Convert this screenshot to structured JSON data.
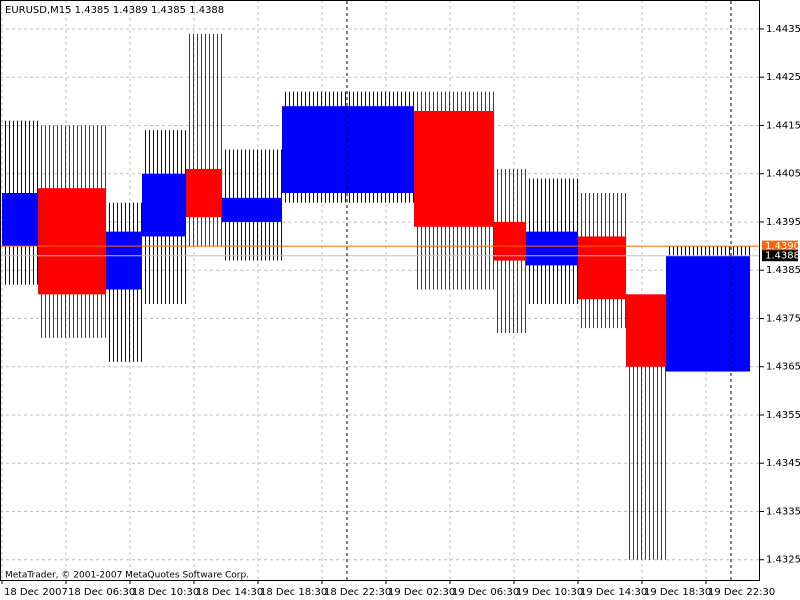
{
  "chart_data": {
    "type": "candlestick",
    "title": "EURUSD,M15  1.4385 1.4389 1.4385 1.4388",
    "footer": "MetaTrader, © 2001-2007 MetaQuotes Software Corp.",
    "up_color": "#0000ff",
    "down_color": "#ff0000",
    "up_wick_color": "#000080",
    "down_wick_color": "#cc0000",
    "grid": true,
    "xlim": [
      -0.125,
      47.375
    ],
    "xticks": [
      {
        "value": 0,
        "label": "18 Dec 2007"
      },
      {
        "value": 4,
        "label": "18 Dec 06:30"
      },
      {
        "value": 8,
        "label": "18 Dec 10:30"
      },
      {
        "value": 12,
        "label": "18 Dec 14:30"
      },
      {
        "value": 16,
        "label": "18 Dec 18:30"
      },
      {
        "value": 20,
        "label": "18 Dec 22:30"
      },
      {
        "value": 24,
        "label": "19 Dec 02:30"
      },
      {
        "value": 28,
        "label": "19 Dec 06:30"
      },
      {
        "value": 32,
        "label": "19 Dec 10:30"
      },
      {
        "value": 36,
        "label": "19 Dec 14:30"
      },
      {
        "value": 40,
        "label": "19 Dec 18:30"
      },
      {
        "value": 44,
        "label": "19 Dec 22:30"
      }
    ],
    "ylim": [
      1.43208,
      1.4441
    ],
    "yticks": [
      1.4435,
      1.4425,
      1.4415,
      1.4405,
      1.4395,
      1.4385,
      1.4375,
      1.4365,
      1.4355,
      1.4345,
      1.4335,
      1.4325
    ],
    "price_lines": [
      {
        "value": 1.439,
        "label": "1.4390",
        "color": "#ff6600"
      },
      {
        "value": 1.4388,
        "label": "1.4388",
        "color": "#000000"
      }
    ],
    "candles": {
      "start": [
        0,
        2.25,
        6.5,
        8.75,
        11.5,
        13.75,
        17.5,
        25.75,
        30.75,
        32.75,
        36,
        39,
        41.5
      ],
      "end": [
        2.25,
        6.5,
        8.75,
        11.5,
        13.75,
        17.5,
        25.75,
        30.75,
        32.75,
        36,
        39,
        41.5,
        46.75
      ],
      "open": [
        1.439,
        1.4402,
        1.4381,
        1.4392,
        1.4406,
        1.4395,
        1.4401,
        1.4418,
        1.4395,
        1.4386,
        1.4392,
        1.438,
        1.4364
      ],
      "high": [
        1.4416,
        1.4415,
        1.4399,
        1.4414,
        1.4434,
        1.441,
        1.4422,
        1.4422,
        1.4406,
        1.4404,
        1.4401,
        1.438,
        1.439
      ],
      "low": [
        1.4382,
        1.4371,
        1.4366,
        1.4378,
        1.439,
        1.4387,
        1.4399,
        1.4381,
        1.4372,
        1.4378,
        1.4373,
        1.4325,
        1.4364
      ],
      "close": [
        1.4401,
        1.438,
        1.4393,
        1.4405,
        1.4396,
        1.44,
        1.4419,
        1.4394,
        1.4387,
        1.4393,
        1.4379,
        1.4365,
        1.4388
      ]
    }
  }
}
